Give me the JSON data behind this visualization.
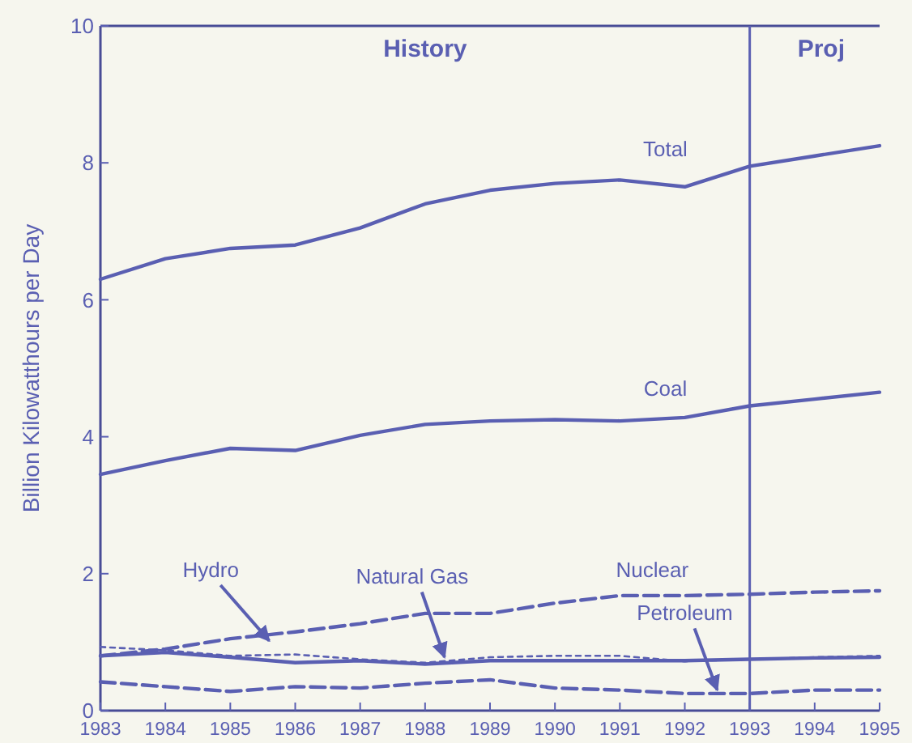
{
  "chart_data": {
    "type": "line",
    "ylabel": "Billion Kilowatthours per Day",
    "x": [
      1983,
      1984,
      1985,
      1986,
      1987,
      1988,
      1989,
      1990,
      1991,
      1992,
      1993,
      1994,
      1995
    ],
    "xlim": [
      1983,
      1995
    ],
    "xticks": [
      1983,
      1984,
      1985,
      1986,
      1987,
      1988,
      1989,
      1990,
      1991,
      1992,
      1993,
      1994,
      1995
    ],
    "ylim": [
      0,
      10
    ],
    "yticks": [
      0,
      2,
      4,
      6,
      8,
      10
    ],
    "grid": false,
    "series": [
      {
        "name": "Total",
        "color": "#5a5fb2",
        "line_style": "solid",
        "values": [
          6.3,
          6.6,
          6.75,
          6.8,
          7.05,
          7.4,
          7.6,
          7.7,
          7.75,
          7.65,
          7.95,
          8.1,
          8.25
        ]
      },
      {
        "name": "Coal",
        "color": "#5a5fb2",
        "line_style": "solid",
        "values": [
          3.45,
          3.65,
          3.83,
          3.8,
          4.02,
          4.18,
          4.23,
          4.25,
          4.23,
          4.28,
          4.45,
          4.55,
          4.65
        ]
      },
      {
        "name": "Nuclear",
        "color": "#5a5fb2",
        "line_style": "dashed",
        "values": [
          0.8,
          0.9,
          1.05,
          1.15,
          1.27,
          1.42,
          1.42,
          1.57,
          1.68,
          1.68,
          1.7,
          1.73,
          1.75
        ]
      },
      {
        "name": "Hydro",
        "color": "#5a5fb2",
        "line_style": "dotted",
        "values": [
          0.93,
          0.88,
          0.8,
          0.82,
          0.75,
          0.7,
          0.78,
          0.8,
          0.8,
          0.72,
          0.75,
          0.78,
          0.8
        ]
      },
      {
        "name": "Natural Gas",
        "color": "#5a5fb2",
        "line_style": "solid",
        "values": [
          0.8,
          0.85,
          0.78,
          0.7,
          0.73,
          0.68,
          0.73,
          0.73,
          0.73,
          0.73,
          0.75,
          0.77,
          0.78
        ]
      },
      {
        "name": "Petroleum",
        "color": "#5a5fb2",
        "line_style": "dashed",
        "values": [
          0.42,
          0.35,
          0.28,
          0.35,
          0.33,
          0.4,
          0.45,
          0.33,
          0.3,
          0.25,
          0.25,
          0.3,
          0.3
        ]
      }
    ],
    "ref_lines": [
      {
        "axis": "x",
        "value": 1993,
        "color": "#5a5fb2"
      }
    ],
    "annotations": [
      "History",
      "Proj"
    ]
  }
}
